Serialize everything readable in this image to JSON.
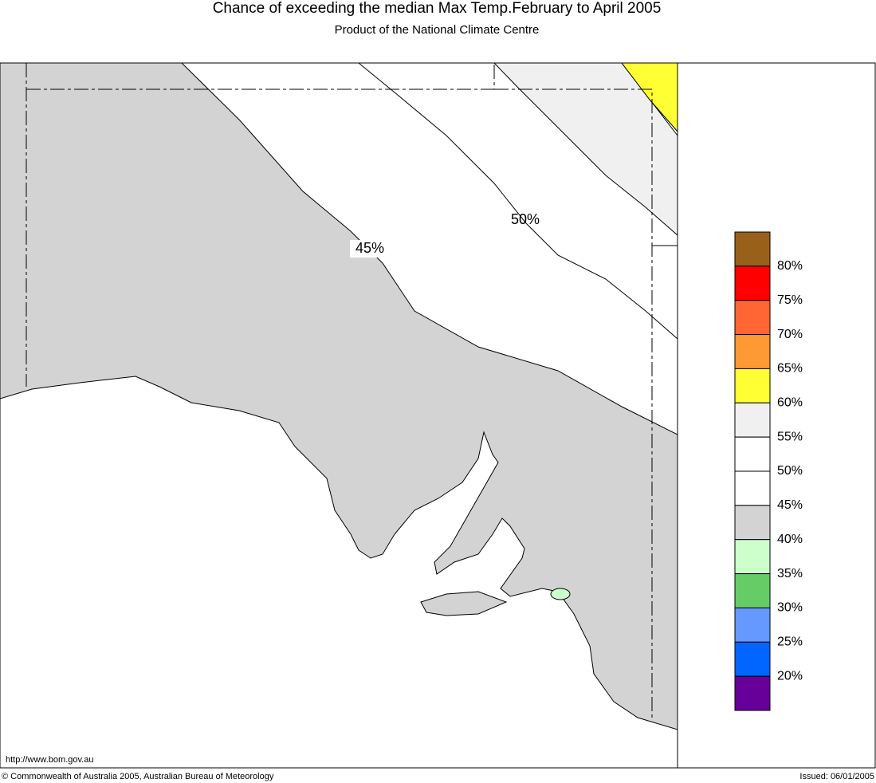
{
  "header": {
    "title": "Chance of exceeding the median Max Temp.February to April 2005",
    "subtitle": "Product of the National Climate Centre"
  },
  "map": {
    "contour_labels": [
      "45%",
      "50%"
    ],
    "url": "http://www.bom.gov.au"
  },
  "legend": {
    "colors": [
      "#996019",
      "#ff0000",
      "#ff6633",
      "#ff9933",
      "#ffff33",
      "#f0f0f0",
      "#ffffff",
      "#ffffff",
      "#d3d3d3",
      "#ccffcc",
      "#66cc66",
      "#6699ff",
      "#0066ff",
      "#660099"
    ],
    "labels": [
      "80%",
      "75%",
      "70%",
      "65%",
      "60%",
      "55%",
      "50%",
      "45%",
      "40%",
      "35%",
      "30%",
      "25%",
      "20%"
    ]
  },
  "footer": {
    "copyright": "© Commonwealth of Australia 2005, Australian Bureau of Meteorology",
    "issued": "Issued: 06/01/2005"
  }
}
